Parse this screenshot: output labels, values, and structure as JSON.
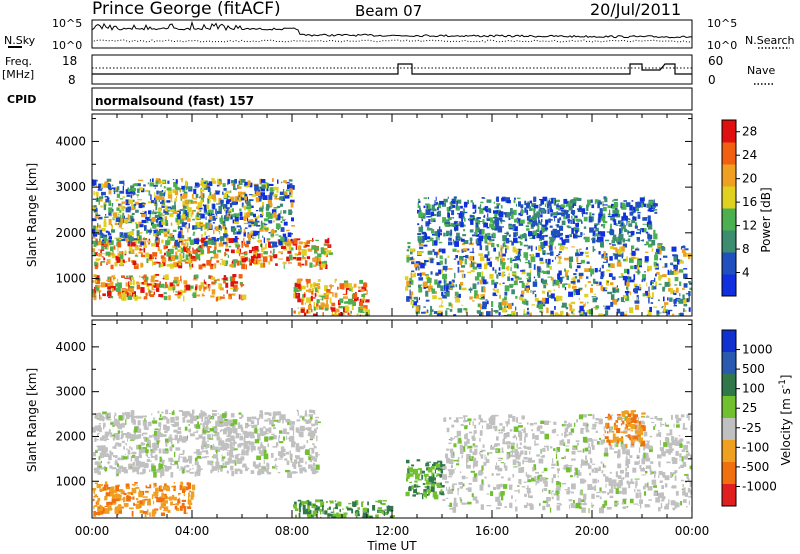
{
  "header": {
    "station": "Prince George (fitACF)",
    "beam": "Beam 07",
    "date": "20/Jul/2011"
  },
  "noise_panel": {
    "left_label": "N.Sky",
    "right_label": "N.Search",
    "tick_top": "10^5",
    "tick_bottom": "10^0"
  },
  "freq_panel": {
    "left_label_line1": "Freq.",
    "left_label_line2": "[MHz]",
    "left_ticks": [
      "18",
      "8"
    ],
    "right_label": "Nave",
    "right_ticks": [
      "60",
      "0"
    ]
  },
  "cpid": {
    "label": "CPID",
    "value": "normalsound (fast) 157"
  },
  "colors": {
    "power_scale": [
      "#1030e0",
      "#2050c0",
      "#3c8c70",
      "#4cb050",
      "#e0d020",
      "#f0a020",
      "#f06010",
      "#e01010"
    ],
    "velocity_scale": [
      "#1030d0",
      "#2a5ab0",
      "#30784a",
      "#70c030",
      "#c0c0c0",
      "#f0a020",
      "#f07010",
      "#e02020"
    ]
  },
  "chart_data": [
    {
      "type": "heatmap",
      "title": "Power",
      "xlabel": "",
      "ylabel": "Slant Range [km]",
      "xlim": [
        "00:00",
        "00:00"
      ],
      "x_ticks": [
        "00:00",
        "04:00",
        "08:00",
        "12:00",
        "16:00",
        "20:00",
        "00:00"
      ],
      "ylim": [
        180,
        4600
      ],
      "y_ticks": [
        1000,
        2000,
        3000,
        4000
      ],
      "colorbar": {
        "label": "Power [dB]",
        "ticks": [
          "4",
          "8",
          "12",
          "16",
          "20",
          "24",
          "28"
        ],
        "range": [
          0,
          30
        ]
      },
      "echo_regions_hours_km": [
        {
          "t": [
            0.0,
            9.5
          ],
          "r": [
            1300,
            1900
          ],
          "level": "high"
        },
        {
          "t": [
            0.0,
            6.0
          ],
          "r": [
            600,
            1100
          ],
          "level": "high"
        },
        {
          "t": [
            0.0,
            8.0
          ],
          "r": [
            1800,
            3200
          ],
          "level": "medium"
        },
        {
          "t": [
            8.0,
            11.0
          ],
          "r": [
            200,
            1000
          ],
          "level": "high"
        },
        {
          "t": [
            12.5,
            23.9
          ],
          "r": [
            200,
            1800
          ],
          "level": "medium"
        },
        {
          "t": [
            13.0,
            22.5
          ],
          "r": [
            1800,
            2800
          ],
          "level": "low"
        }
      ]
    },
    {
      "type": "heatmap",
      "title": "Velocity",
      "xlabel": "Time UT",
      "ylabel": "Slant Range [km]",
      "xlim": [
        "00:00",
        "00:00"
      ],
      "x_ticks": [
        "00:00",
        "04:00",
        "08:00",
        "12:00",
        "16:00",
        "20:00",
        "00:00"
      ],
      "ylim": [
        180,
        4600
      ],
      "y_ticks": [
        1000,
        2000,
        3000,
        4000
      ],
      "colorbar": {
        "label": "Velocity [m s^-1]",
        "ticks": [
          "1000",
          "500",
          "100",
          "25",
          "-25",
          "-100",
          "-500",
          "-1000"
        ]
      },
      "echo_regions_hours_km": [
        {
          "t": [
            0.0,
            9.0
          ],
          "r": [
            1200,
            2600
          ],
          "value": "near zero"
        },
        {
          "t": [
            0.0,
            4.0
          ],
          "r": [
            300,
            1000
          ],
          "value": "negative"
        },
        {
          "t": [
            8.0,
            12.0
          ],
          "r": [
            200,
            600
          ],
          "value": "positive"
        },
        {
          "t": [
            12.5,
            14.0
          ],
          "r": [
            700,
            1500
          ],
          "value": "positive"
        },
        {
          "t": [
            14.0,
            24.0
          ],
          "r": [
            400,
            2500
          ],
          "value": "near zero"
        },
        {
          "t": [
            20.5,
            22.0
          ],
          "r": [
            1800,
            2600
          ],
          "value": "negative"
        }
      ]
    }
  ]
}
